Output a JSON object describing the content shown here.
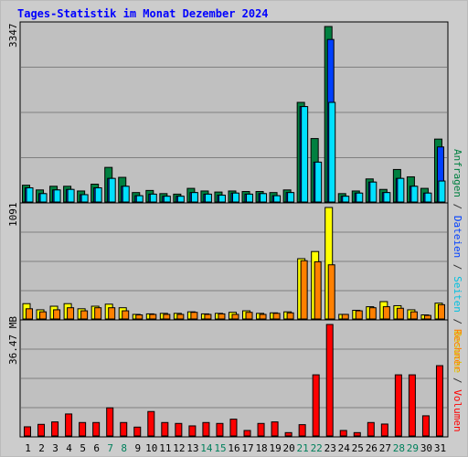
{
  "title": "Tages-Statistik im Monat Dezember 2024",
  "panels": {
    "top_max_label": "3347",
    "middle_max_label": "1091",
    "bottom_max_label": "36.47 MB"
  },
  "legend": {
    "top": [
      "Anfragen",
      "Dateien",
      "Seiten",
      "Besuche"
    ],
    "bottom": [
      "Rechner",
      "Volumen"
    ],
    "separator": "/"
  },
  "colors": {
    "background": "#cccccc",
    "panel": "#c0c0c0",
    "grid": "#808080",
    "anfragen": "#008040",
    "dateien": "#0040ff",
    "seiten": "#00e0ff",
    "besuche": "#ffff00",
    "rechner": "#ff8000",
    "volumen": "#ff0000",
    "weekend_day": "#00805c",
    "weekday": "#000000"
  },
  "chart_data": [
    {
      "type": "bar",
      "name": "",
      "categories": [
        "1",
        "2",
        "3",
        "4",
        "5",
        "6",
        "7",
        "8",
        "9",
        "10",
        "11",
        "12",
        "13",
        "14",
        "15",
        "16",
        "17",
        "18",
        "19",
        "20",
        "21",
        "22",
        "23",
        "24",
        "25",
        "26",
        "27",
        "28",
        "29",
        "30",
        "31"
      ],
      "weekend_days": [
        "7",
        "8",
        "14",
        "15",
        "21",
        "22",
        "28",
        "29"
      ],
      "ylim": [
        0,
        3347
      ],
      "series": [
        {
          "name": "Anfragen",
          "values": [
            320,
            230,
            300,
            300,
            210,
            340,
            660,
            470,
            180,
            220,
            160,
            150,
            260,
            210,
            190,
            210,
            200,
            200,
            180,
            230,
            1900,
            1210,
            3347,
            160,
            210,
            440,
            240,
            620,
            480,
            260,
            1200
          ]
        },
        {
          "name": "Dateien",
          "values": [
            270,
            160,
            230,
            240,
            140,
            270,
            450,
            300,
            120,
            150,
            110,
            110,
            180,
            150,
            130,
            170,
            150,
            160,
            120,
            180,
            1820,
            760,
            3100,
            110,
            170,
            380,
            180,
            450,
            300,
            170,
            1050
          ]
        },
        {
          "name": "Seiten",
          "values": [
            270,
            160,
            230,
            240,
            140,
            270,
            450,
            300,
            120,
            150,
            110,
            110,
            180,
            150,
            130,
            170,
            150,
            160,
            120,
            180,
            1820,
            760,
            1900,
            110,
            170,
            380,
            180,
            450,
            300,
            170,
            400
          ]
        }
      ]
    },
    {
      "type": "bar",
      "name": "",
      "categories": [
        "1",
        "2",
        "3",
        "4",
        "5",
        "6",
        "7",
        "8",
        "9",
        "10",
        "11",
        "12",
        "13",
        "14",
        "15",
        "16",
        "17",
        "18",
        "19",
        "20",
        "21",
        "22",
        "23",
        "24",
        "25",
        "26",
        "27",
        "28",
        "29",
        "30",
        "31"
      ],
      "ylim": [
        0,
        1091
      ],
      "series": [
        {
          "name": "Besuche",
          "values": [
            150,
            90,
            125,
            150,
            100,
            125,
            145,
            110,
            45,
            50,
            55,
            55,
            70,
            50,
            55,
            65,
            80,
            55,
            60,
            70,
            590,
            660,
            1091,
            45,
            85,
            120,
            170,
            130,
            90,
            40,
            155
          ]
        },
        {
          "name": "Rechner",
          "values": [
            100,
            70,
            90,
            110,
            80,
            110,
            110,
            80,
            40,
            45,
            45,
            45,
            65,
            45,
            50,
            45,
            65,
            45,
            55,
            60,
            570,
            560,
            530,
            45,
            80,
            110,
            120,
            105,
            70,
            35,
            140
          ]
        }
      ]
    },
    {
      "type": "bar",
      "name": "",
      "categories": [
        "1",
        "2",
        "3",
        "4",
        "5",
        "6",
        "7",
        "8",
        "9",
        "10",
        "11",
        "12",
        "13",
        "14",
        "15",
        "16",
        "17",
        "18",
        "19",
        "20",
        "21",
        "22",
        "23",
        "24",
        "25",
        "26",
        "27",
        "28",
        "29",
        "30",
        "31"
      ],
      "ylim": [
        0,
        36.47
      ],
      "series": [
        {
          "name": "Volumen",
          "values": [
            3.0,
            3.8,
            4.6,
            7.2,
            4.4,
            4.4,
            9.2,
            4.4,
            2.9,
            8.0,
            4.4,
            4.1,
            3.3,
            4.4,
            4.1,
            5.5,
            1.8,
            4.1,
            4.6,
            1.1,
            3.7,
            20.0,
            36.47,
            1.8,
            1.1,
            4.4,
            3.9,
            20.0,
            20.0,
            6.6,
            23.0
          ]
        }
      ]
    }
  ]
}
